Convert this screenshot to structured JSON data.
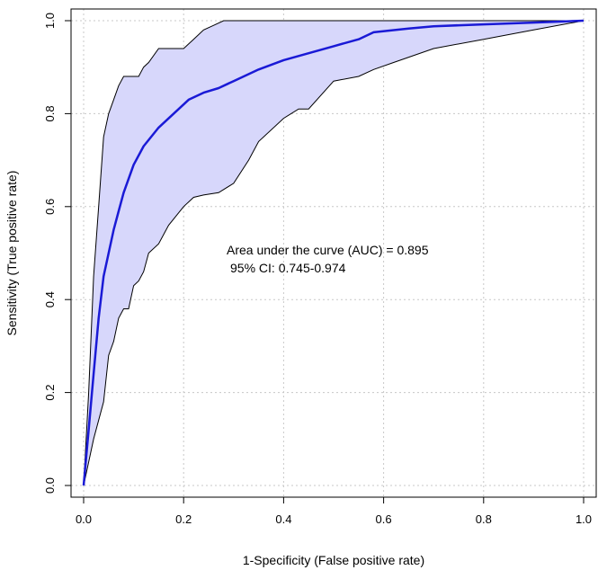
{
  "chart_data": {
    "type": "line",
    "title": "",
    "xlabel": "1-Specificity (False positive rate)",
    "ylabel": "Sensitivity (True positive rate)",
    "xlim": [
      0,
      1
    ],
    "ylim": [
      0,
      1
    ],
    "xticks": [
      "0.0",
      "0.2",
      "0.4",
      "0.6",
      "0.8",
      "1.0"
    ],
    "yticks": [
      "0.0",
      "0.2",
      "0.4",
      "0.6",
      "0.8",
      "1.0"
    ],
    "grid": true,
    "colors": {
      "curve": "#1a1ad6",
      "band_fill": "#d7d7fb",
      "band_edge": "#000000",
      "grid": "#c8c8c8"
    },
    "annotations": [
      "Area under the curve (AUC) = 0.895",
      "95% CI: 0.745-0.974"
    ],
    "series": [
      {
        "role": "roc_curve",
        "x": [
          0.0,
          0.01,
          0.02,
          0.03,
          0.04,
          0.05,
          0.06,
          0.07,
          0.08,
          0.1,
          0.12,
          0.15,
          0.18,
          0.21,
          0.24,
          0.27,
          0.3,
          0.35,
          0.4,
          0.45,
          0.5,
          0.55,
          0.58,
          0.65,
          0.7,
          0.8,
          0.9,
          1.0
        ],
        "y": [
          0.0,
          0.12,
          0.24,
          0.36,
          0.45,
          0.5,
          0.55,
          0.59,
          0.63,
          0.69,
          0.73,
          0.77,
          0.8,
          0.83,
          0.845,
          0.855,
          0.87,
          0.895,
          0.915,
          0.93,
          0.945,
          0.96,
          0.975,
          0.983,
          0.988,
          0.992,
          0.996,
          1.0
        ]
      },
      {
        "role": "ci_upper",
        "x": [
          0.0,
          0.01,
          0.02,
          0.03,
          0.04,
          0.05,
          0.06,
          0.07,
          0.08,
          0.09,
          0.1,
          0.11,
          0.12,
          0.13,
          0.15,
          0.2,
          0.22,
          0.24,
          0.26,
          0.28,
          0.3,
          0.4,
          0.6,
          0.8,
          1.0
        ],
        "y": [
          0.0,
          0.2,
          0.45,
          0.6,
          0.75,
          0.8,
          0.83,
          0.86,
          0.88,
          0.88,
          0.88,
          0.88,
          0.9,
          0.91,
          0.94,
          0.94,
          0.96,
          0.98,
          0.99,
          1.0,
          1.0,
          1.0,
          1.0,
          1.0,
          1.0
        ]
      },
      {
        "role": "ci_lower",
        "x": [
          0.0,
          0.02,
          0.04,
          0.05,
          0.06,
          0.07,
          0.08,
          0.09,
          0.1,
          0.11,
          0.12,
          0.13,
          0.15,
          0.17,
          0.2,
          0.22,
          0.24,
          0.27,
          0.3,
          0.33,
          0.35,
          0.4,
          0.43,
          0.45,
          0.5,
          0.55,
          0.58,
          0.62,
          0.7,
          0.8,
          0.9,
          1.0
        ],
        "y": [
          0.0,
          0.1,
          0.18,
          0.28,
          0.31,
          0.36,
          0.38,
          0.38,
          0.43,
          0.44,
          0.46,
          0.5,
          0.52,
          0.56,
          0.6,
          0.62,
          0.625,
          0.63,
          0.65,
          0.7,
          0.74,
          0.79,
          0.81,
          0.81,
          0.87,
          0.88,
          0.895,
          0.91,
          0.94,
          0.96,
          0.98,
          1.0
        ]
      }
    ]
  }
}
